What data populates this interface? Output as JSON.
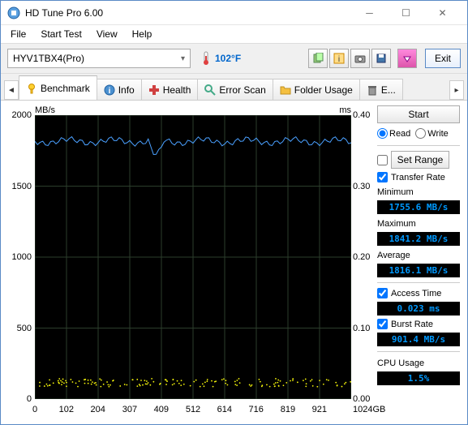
{
  "window": {
    "title": "HD Tune Pro 6.00"
  },
  "menu": {
    "file": "File",
    "start": "Start Test",
    "view": "View",
    "help": "Help"
  },
  "toolbar": {
    "drive": "HYV1TBX4(Pro)",
    "temp": "102°F",
    "exit": "Exit"
  },
  "tabs": {
    "benchmark": "Benchmark",
    "info": "Info",
    "health": "Health",
    "errorscan": "Error Scan",
    "folderusage": "Folder Usage",
    "erase": "E..."
  },
  "chart": {
    "y_unit_left": "MB/s",
    "y_unit_right": "ms",
    "x_unit": "1024GB",
    "y_left": {
      "ticks": [
        0,
        500,
        1000,
        1500,
        2000
      ],
      "max": 2000
    },
    "y_right": {
      "ticks": [
        "0.00",
        "0.10",
        "0.20",
        "0.30",
        "0.40"
      ]
    },
    "x_ticks": [
      0,
      102,
      204,
      307,
      409,
      512,
      614,
      716,
      819,
      921
    ],
    "transfer_line_value": 1816,
    "access_dots_value": 0.023,
    "colors": {
      "bg": "#000000",
      "grid": "#2c3e2c",
      "transfer": "#4aa0ff",
      "access": "#f5f50a"
    }
  },
  "panel": {
    "start": "Start",
    "read": "Read",
    "write": "Write",
    "setrange": "Set Range",
    "transfer_rate": "Transfer Rate",
    "minimum_label": "Minimum",
    "minimum": "1755.6 MB/s",
    "maximum_label": "Maximum",
    "maximum": "1841.2 MB/s",
    "average_label": "Average",
    "average": "1816.1 MB/s",
    "access_time_label": "Access Time",
    "access_time": "0.023 ms",
    "burst_rate_label": "Burst Rate",
    "burst_rate": "901.4 MB/s",
    "cpu_usage_label": "CPU Usage",
    "cpu_usage": "1.5%"
  }
}
